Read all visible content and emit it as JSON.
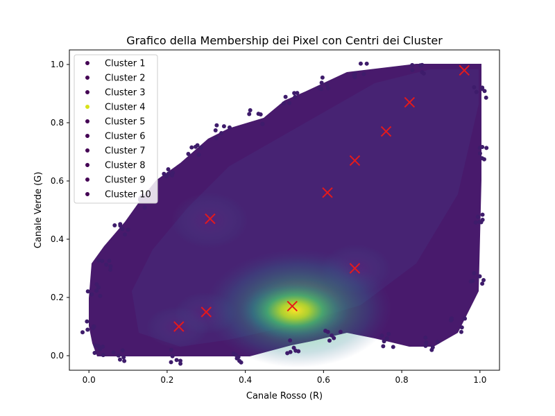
{
  "chart_data": {
    "type": "scatter",
    "title": "Grafico della Membership dei Pixel con Centri dei Cluster",
    "xlabel": "Canale Rosso (R)",
    "ylabel": "Canale Verde (G)",
    "xlim": [
      -0.05,
      1.05
    ],
    "ylim": [
      -0.05,
      1.05
    ],
    "xticks": [
      "0.0",
      "0.2",
      "0.4",
      "0.6",
      "0.8",
      "1.0"
    ],
    "yticks": [
      "0.0",
      "0.2",
      "0.4",
      "0.6",
      "0.8",
      "1.0"
    ],
    "grid": false,
    "legend_position": "upper-left",
    "colormap": "viridis",
    "colors": {
      "viridis_low": "#440154",
      "viridis_high": "#fde725",
      "center_marker": "#e41a1c"
    },
    "series": [
      {
        "name": "Cluster 1",
        "color": "#440154"
      },
      {
        "name": "Cluster 2",
        "color": "#440154"
      },
      {
        "name": "Cluster 3",
        "color": "#440154"
      },
      {
        "name": "Cluster 4",
        "color": "#d8e219"
      },
      {
        "name": "Cluster 5",
        "color": "#440154"
      },
      {
        "name": "Cluster 6",
        "color": "#440154"
      },
      {
        "name": "Cluster 7",
        "color": "#440154"
      },
      {
        "name": "Cluster 8",
        "color": "#440154"
      },
      {
        "name": "Cluster 9",
        "color": "#440154"
      },
      {
        "name": "Cluster 10",
        "color": "#440154"
      }
    ],
    "centers": [
      {
        "x": 0.23,
        "y": 0.1
      },
      {
        "x": 0.3,
        "y": 0.15
      },
      {
        "x": 0.31,
        "y": 0.47
      },
      {
        "x": 0.52,
        "y": 0.17
      },
      {
        "x": 0.61,
        "y": 0.56
      },
      {
        "x": 0.68,
        "y": 0.3
      },
      {
        "x": 0.68,
        "y": 0.67
      },
      {
        "x": 0.76,
        "y": 0.77
      },
      {
        "x": 0.82,
        "y": 0.87
      },
      {
        "x": 0.96,
        "y": 0.98
      }
    ]
  }
}
